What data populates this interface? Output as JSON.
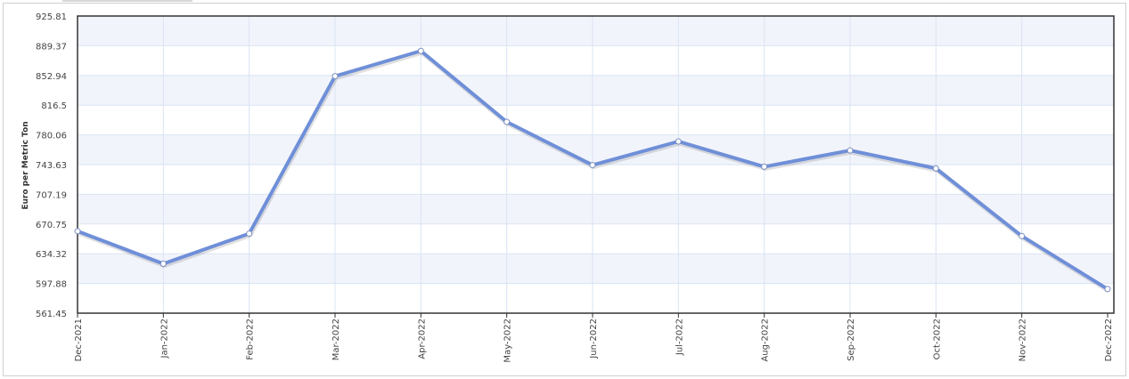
{
  "chart_data": {
    "type": "line",
    "title": "",
    "xlabel": "",
    "ylabel": "Euro per Metric Ton",
    "categories": [
      "Dec-2021",
      "Jan-2022",
      "Feb-2022",
      "Mar-2022",
      "Apr-2022",
      "May-2022",
      "Jun-2022",
      "Jul-2022",
      "Aug-2022",
      "Sep-2022",
      "Oct-2022",
      "Nov-2022",
      "Dec-2022"
    ],
    "series": [
      {
        "values": [
          662,
          622,
          659,
          852,
          883,
          796,
          743,
          772,
          741,
          761,
          739,
          656,
          591
        ]
      }
    ],
    "ylim": [
      561.45,
      925.81
    ],
    "yticks": [
      "925.81",
      "889.37",
      "852.94",
      "816.5",
      "780.06",
      "743.63",
      "707.19",
      "670.75",
      "634.32",
      "597.88",
      "561.45"
    ],
    "grid": true,
    "line_color": "#6f8fd8",
    "band_color": "#f2f4fb"
  }
}
